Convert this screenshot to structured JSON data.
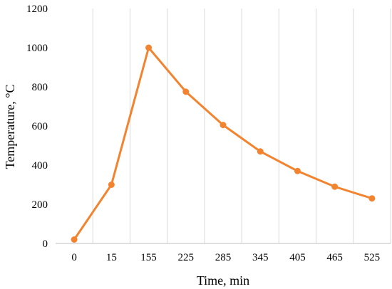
{
  "chart_data": {
    "type": "line",
    "categories": [
      "0",
      "15",
      "155",
      "225",
      "285",
      "345",
      "405",
      "465",
      "525"
    ],
    "series": [
      {
        "values": [
          20,
          300,
          1000,
          775,
          605,
          470,
          370,
          290,
          230
        ],
        "color": "#F28430"
      }
    ],
    "xlabel": "Time, min",
    "ylabel": "Temperature, °C",
    "ylim": [
      0,
      1200
    ],
    "yticks": [
      "0",
      "200",
      "400",
      "600",
      "800",
      "1000",
      "1200"
    ],
    "grid": "vertical",
    "legend": "none",
    "gridColor": "#D9D9D9",
    "axisColor": "#BFBFBF"
  }
}
